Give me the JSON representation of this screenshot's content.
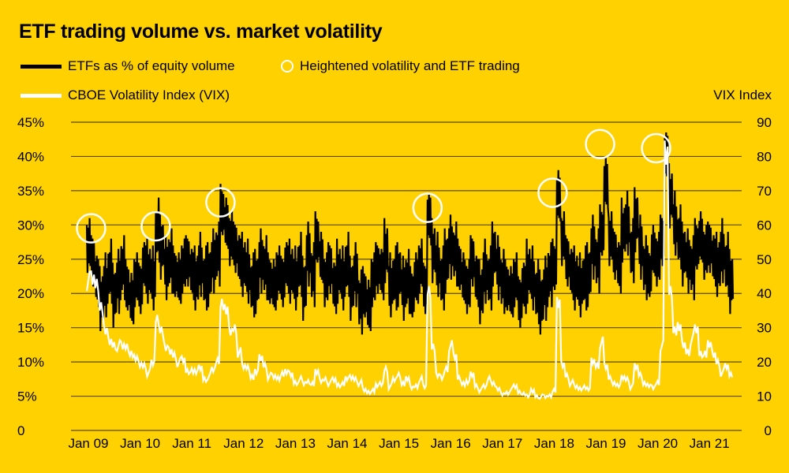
{
  "chart_data": {
    "type": "line",
    "title": "ETF trading volume vs. market volatility",
    "legend": {
      "etf": "ETFs as % of equity volume",
      "circles": "Heightened volatility and ETF trading",
      "vix": "CBOE Volatility Index (VIX)"
    },
    "y_left": {
      "ticks": [
        "0",
        "5%",
        "10%",
        "15%",
        "20%",
        "25%",
        "30%",
        "35%",
        "40%",
        "45%"
      ],
      "range": [
        0,
        45
      ]
    },
    "y_right": {
      "label": "VIX Index",
      "ticks": [
        "0",
        "10",
        "20",
        "30",
        "40",
        "50",
        "60",
        "70",
        "80",
        "90"
      ],
      "range": [
        0,
        90
      ]
    },
    "x_ticks": [
      "Jan 09",
      "Jan 10",
      "Jan 11",
      "Jan 12",
      "Jan 13",
      "Jan 14",
      "Jan 15",
      "Jan 16",
      "Jan 17",
      "Jan 18",
      "Jan 19",
      "Jan 20",
      "Jan 21"
    ],
    "x_start": "2009-01",
    "frequency": "monthly",
    "colors": {
      "background": "#FFD100",
      "etf": "#000000",
      "vix": "#FFFFFF",
      "circles": "#FFFFFF",
      "grid": "#5a4a00"
    },
    "series": [
      {
        "name": "ETFs as % of equity volume",
        "axis": "left",
        "values": [
          27,
          25,
          22,
          19,
          21,
          23,
          20,
          22,
          24,
          21,
          19,
          22,
          21,
          24,
          23,
          22,
          29,
          27,
          24,
          25,
          23,
          22,
          24,
          25,
          23,
          22,
          24,
          22,
          23,
          25,
          26,
          32,
          30,
          28,
          27,
          25,
          24,
          23,
          21,
          22,
          25,
          24,
          22,
          21,
          23,
          22,
          24,
          23,
          22,
          24,
          21,
          26,
          23,
          28,
          25,
          22,
          24,
          21,
          23,
          22,
          24,
          21,
          23,
          19,
          20,
          18,
          22,
          24,
          23,
          26,
          21,
          22,
          23,
          21,
          22,
          20,
          22,
          24,
          21,
          31,
          26,
          24,
          22,
          25,
          27,
          26,
          24,
          22,
          21,
          25,
          22,
          20,
          23,
          22,
          26,
          24,
          22,
          21,
          20,
          22,
          19,
          21,
          23,
          22,
          20,
          19,
          21,
          23,
          24,
          34,
          28,
          25,
          23,
          22,
          21,
          22,
          23,
          27,
          25,
          29,
          36,
          28,
          26,
          24,
          29,
          30,
          26,
          31,
          27,
          24,
          23,
          26,
          25,
          28,
          40,
          34,
          30,
          28,
          26,
          25,
          24,
          27,
          28,
          26,
          27,
          25,
          24,
          26,
          24,
          22
        ]
      },
      {
        "name": "CBOE Volatility Index (VIX)",
        "axis": "right",
        "values": [
          44,
          45,
          42,
          37,
          29,
          27,
          25,
          25,
          25,
          24,
          23,
          21,
          20,
          19,
          17,
          20,
          32,
          30,
          24,
          24,
          22,
          20,
          21,
          17,
          18,
          17,
          19,
          15,
          16,
          18,
          20,
          38,
          35,
          30,
          30,
          23,
          19,
          18,
          16,
          17,
          22,
          19,
          16,
          16,
          15,
          17,
          17,
          17,
          14,
          15,
          14,
          14,
          14,
          17,
          15,
          15,
          14,
          15,
          13,
          14,
          15,
          16,
          15,
          14,
          12,
          11,
          12,
          13,
          14,
          18,
          13,
          15,
          16,
          14,
          15,
          13,
          13,
          15,
          13,
          40,
          25,
          16,
          16,
          18,
          25,
          22,
          15,
          14,
          14,
          17,
          13,
          12,
          13,
          15,
          14,
          12,
          11,
          11,
          12,
          13,
          11,
          11,
          10,
          12,
          10,
          10,
          10,
          10,
          12,
          37,
          20,
          16,
          14,
          13,
          12,
          13,
          12,
          21,
          19,
          26,
          19,
          15,
          14,
          13,
          16,
          15,
          13,
          19,
          16,
          14,
          13,
          13,
          14,
          25,
          82,
          40,
          30,
          30,
          26,
          23,
          27,
          30,
          22,
          23,
          25,
          23,
          20,
          17,
          19,
          16
        ]
      }
    ],
    "highlights": [
      {
        "month_index": 1,
        "etf_pct": 29.5
      },
      {
        "month_index": 16,
        "etf_pct": 29.8
      },
      {
        "month_index": 31,
        "etf_pct": 33.3
      },
      {
        "month_index": 79,
        "etf_pct": 32.5
      },
      {
        "month_index": 108,
        "etf_pct": 34.7
      },
      {
        "month_index": 119,
        "etf_pct": 41.8
      },
      {
        "month_index": 132,
        "etf_pct": 41.2
      }
    ]
  }
}
